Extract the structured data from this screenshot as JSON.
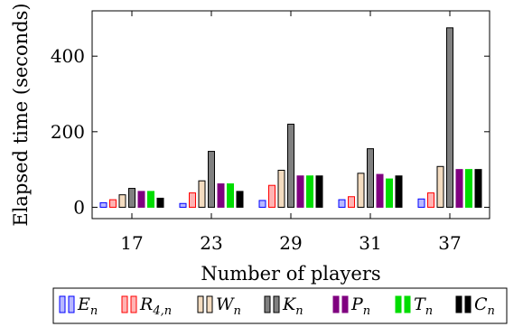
{
  "chart_data": {
    "type": "bar",
    "title": "",
    "xlabel": "Number of players",
    "ylabel": "Elapsed time (seconds)",
    "categories": [
      "17",
      "23",
      "29",
      "31",
      "37"
    ],
    "ylim": [
      -30,
      520
    ],
    "yticks": [
      "0",
      "200",
      "400"
    ],
    "ytick_values": [
      0,
      200,
      400
    ],
    "grid": false,
    "legend_position": "bottom",
    "series": [
      {
        "name": "E_n",
        "label_main": "E",
        "label_sub": "n",
        "fill": "#b8b8ff",
        "stroke": "#0000ff",
        "values": [
          12,
          10,
          18,
          20,
          22
        ]
      },
      {
        "name": "R_{4,n}",
        "label_main": "R",
        "label_sub": "4,n",
        "fill": "#ffb3b3",
        "stroke": "#ff0000",
        "values": [
          20,
          38,
          58,
          28,
          38
        ]
      },
      {
        "name": "W_n",
        "label_main": "W",
        "label_sub": "n",
        "fill": "#f4dcc0",
        "stroke": "#000000",
        "values": [
          33,
          70,
          98,
          90,
          108
        ]
      },
      {
        "name": "K_n",
        "label_main": "K",
        "label_sub": "n",
        "fill": "#808080",
        "stroke": "#000000",
        "values": [
          50,
          148,
          220,
          155,
          475
        ]
      },
      {
        "name": "P_n",
        "label_main": "P",
        "label_sub": "n",
        "fill": "#800080",
        "stroke": "#800080",
        "values": [
          42,
          62,
          83,
          87,
          100
        ]
      },
      {
        "name": "T_n",
        "label_main": "T",
        "label_sub": "n",
        "fill": "#00dd00",
        "stroke": "#00dd00",
        "values": [
          42,
          62,
          83,
          75,
          100
        ]
      },
      {
        "name": "C_n",
        "label_main": "C",
        "label_sub": "n",
        "fill": "#000000",
        "stroke": "#000000",
        "values": [
          24,
          42,
          83,
          83,
          100
        ]
      }
    ]
  }
}
